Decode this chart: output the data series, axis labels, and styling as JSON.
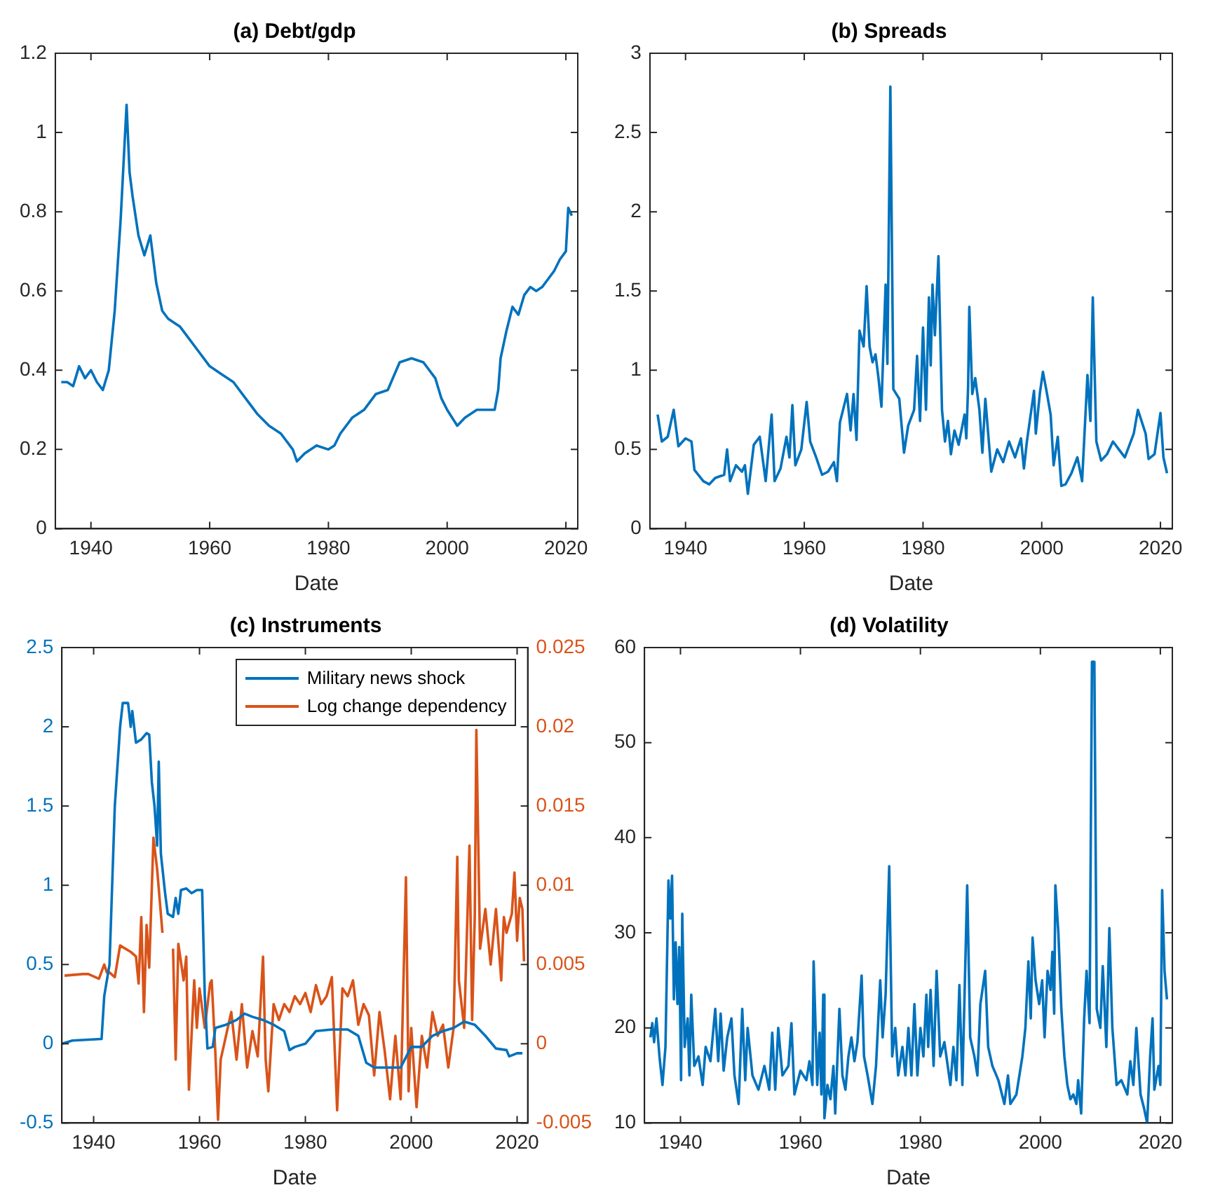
{
  "chart_data": [
    {
      "type": "line",
      "title": "(a) Debt/gdp",
      "xlabel": "Date",
      "xlim": [
        1934,
        2022
      ],
      "xticks": [
        1940,
        1960,
        1980,
        2000,
        2020
      ],
      "ylim": [
        0,
        1.2
      ],
      "yticks": [
        0,
        0.2,
        0.4,
        0.6,
        0.8,
        1,
        1.2
      ],
      "grid": false,
      "legend": false,
      "marker": "none",
      "line_style": "solid",
      "series": [
        {
          "color": "#0072bd",
          "x": [
            1935,
            1936,
            1937,
            1938,
            1939,
            1940,
            1941,
            1942,
            1943,
            1944,
            1945,
            1946,
            1946.5,
            1947,
            1948,
            1949,
            1950,
            1951,
            1952,
            1953,
            1954,
            1955,
            1956,
            1958,
            1960,
            1962,
            1964,
            1966,
            1968,
            1970,
            1972,
            1974,
            1974.7,
            1976,
            1978,
            1980,
            1981,
            1982,
            1984,
            1986,
            1988,
            1990,
            1992,
            1994,
            1996,
            1998,
            1999,
            2000,
            2001.7,
            2003,
            2005,
            2007,
            2008,
            2008.6,
            2009,
            2010,
            2011,
            2012,
            2013,
            2014,
            2015,
            2016,
            2017,
            2018,
            2019,
            2020,
            2020.4,
            2021
          ],
          "values": [
            0.37,
            0.37,
            0.36,
            0.41,
            0.38,
            0.4,
            0.37,
            0.35,
            0.4,
            0.55,
            0.78,
            1.07,
            0.9,
            0.84,
            0.74,
            0.69,
            0.74,
            0.62,
            0.55,
            0.53,
            0.52,
            0.51,
            0.49,
            0.45,
            0.41,
            0.39,
            0.37,
            0.33,
            0.29,
            0.26,
            0.24,
            0.2,
            0.17,
            0.19,
            0.21,
            0.2,
            0.21,
            0.24,
            0.28,
            0.3,
            0.34,
            0.35,
            0.42,
            0.43,
            0.42,
            0.38,
            0.33,
            0.3,
            0.26,
            0.28,
            0.3,
            0.3,
            0.3,
            0.35,
            0.43,
            0.5,
            0.56,
            0.54,
            0.59,
            0.61,
            0.6,
            0.61,
            0.63,
            0.65,
            0.68,
            0.7,
            0.81,
            0.79
          ]
        }
      ]
    },
    {
      "type": "line",
      "title": "(b) Spreads",
      "xlabel": "Date",
      "xlim": [
        1934,
        2022
      ],
      "xticks": [
        1940,
        1960,
        1980,
        2000,
        2020
      ],
      "ylim": [
        0,
        3
      ],
      "yticks": [
        0,
        0.5,
        1,
        1.5,
        2,
        2.5,
        3
      ],
      "grid": false,
      "legend": false,
      "marker": "none",
      "line_style": "solid",
      "series": [
        {
          "color": "#0072bd",
          "x": [
            1935.3,
            1936,
            1937,
            1938,
            1938.8,
            1940,
            1941,
            1941.5,
            1943,
            1944,
            1945,
            1946.5,
            1947,
            1947.5,
            1948.5,
            1949.5,
            1950,
            1950.5,
            1951.5,
            1952.5,
            1953.5,
            1954.5,
            1955,
            1956,
            1957,
            1957.5,
            1958,
            1958.5,
            1959.5,
            1960.4,
            1961,
            1962,
            1963,
            1964,
            1965,
            1965.5,
            1966,
            1967.2,
            1967.8,
            1968.3,
            1968.8,
            1969.3,
            1970,
            1970.5,
            1971,
            1971.5,
            1972,
            1972.5,
            1973,
            1973.7,
            1974,
            1974.5,
            1975,
            1976,
            1976.8,
            1977.5,
            1978.5,
            1979,
            1979.5,
            1980,
            1980.5,
            1981,
            1981.3,
            1981.6,
            1982,
            1982.6,
            1983.2,
            1983.7,
            1984.2,
            1984.7,
            1985.3,
            1986,
            1987,
            1987.3,
            1987.6,
            1987.8,
            1988.3,
            1988.8,
            1989.5,
            1990,
            1990.5,
            1991.5,
            1992.5,
            1993.5,
            1994.5,
            1995.5,
            1996.5,
            1997,
            1997.5,
            1998.7,
            1999,
            1999.7,
            2000.2,
            2000.8,
            2001.5,
            2002,
            2002.7,
            2003.3,
            2004,
            2005,
            2006,
            2006.8,
            2007.7,
            2008.2,
            2008.6,
            2009.2,
            2010,
            2011,
            2012,
            2013,
            2014,
            2015.5,
            2016.2,
            2017.5,
            2018,
            2019,
            2020,
            2020.5,
            2021.1
          ],
          "values": [
            0.72,
            0.55,
            0.58,
            0.75,
            0.52,
            0.57,
            0.55,
            0.37,
            0.3,
            0.28,
            0.32,
            0.34,
            0.5,
            0.3,
            0.4,
            0.36,
            0.4,
            0.22,
            0.53,
            0.58,
            0.3,
            0.72,
            0.3,
            0.38,
            0.58,
            0.45,
            0.78,
            0.4,
            0.5,
            0.8,
            0.55,
            0.45,
            0.34,
            0.36,
            0.42,
            0.3,
            0.67,
            0.85,
            0.62,
            0.85,
            0.56,
            1.25,
            1.15,
            1.53,
            1.15,
            1.05,
            1.1,
            0.95,
            0.77,
            1.54,
            1.04,
            2.79,
            0.88,
            0.82,
            0.48,
            0.65,
            0.75,
            1.09,
            0.68,
            1.27,
            0.75,
            1.46,
            1.03,
            1.54,
            1.22,
            1.72,
            0.75,
            0.55,
            0.68,
            0.47,
            0.62,
            0.53,
            0.72,
            0.57,
            0.9,
            1.4,
            0.85,
            0.95,
            0.75,
            0.48,
            0.82,
            0.36,
            0.5,
            0.42,
            0.55,
            0.45,
            0.57,
            0.38,
            0.55,
            0.87,
            0.6,
            0.86,
            0.99,
            0.87,
            0.72,
            0.4,
            0.58,
            0.27,
            0.28,
            0.35,
            0.45,
            0.3,
            0.97,
            0.68,
            1.46,
            0.55,
            0.43,
            0.47,
            0.55,
            0.5,
            0.45,
            0.6,
            0.75,
            0.6,
            0.44,
            0.47,
            0.73,
            0.45,
            0.35
          ]
        }
      ]
    },
    {
      "type": "line",
      "title": "(c) Instruments",
      "xlabel": "Date",
      "xlim": [
        1934,
        2022
      ],
      "xticks": [
        1940,
        1960,
        1980,
        2000,
        2020
      ],
      "ylim": [
        -0.5,
        2.5
      ],
      "yticks": [
        -0.5,
        0,
        0.5,
        1,
        1.5,
        2,
        2.5
      ],
      "y2lim": [
        -0.005,
        0.025
      ],
      "y2ticks": [
        -0.005,
        0,
        0.005,
        0.01,
        0.015,
        0.02,
        0.025
      ],
      "grid": false,
      "legend": "top right",
      "marker": "none",
      "line_style": "solid",
      "series": [
        {
          "name": "Military news shock",
          "color": "#0072bd",
          "x": [
            1934,
            1936,
            1941.5,
            1942,
            1943,
            1943.5,
            1944,
            1945,
            1945.5,
            1946.5,
            1947,
            1947.3,
            1948,
            1949,
            1950,
            1950.5,
            1951,
            1951.5,
            1952,
            1952.3,
            1952.7,
            1953.5,
            1954,
            1955,
            1955.5,
            1956,
            1956.5,
            1957.5,
            1958.5,
            1959.5,
            1960.5,
            1961,
            1961.5,
            1962.5,
            1963,
            1965,
            1967,
            1968.5,
            1970,
            1972,
            1974,
            1976,
            1977,
            1978,
            1980,
            1982,
            1985,
            1988,
            1990,
            1991.5,
            1993,
            1995,
            1998,
            2000,
            2002,
            2004,
            2006,
            2008,
            2010,
            2012,
            2014,
            2016,
            2018,
            2018.5,
            2020,
            2021
          ],
          "values": [
            0.0,
            0.02,
            0.03,
            0.3,
            0.5,
            1.0,
            1.5,
            2.0,
            2.15,
            2.15,
            2.0,
            2.1,
            1.9,
            1.92,
            1.96,
            1.95,
            1.65,
            1.5,
            1.25,
            1.78,
            1.2,
            0.95,
            0.82,
            0.8,
            0.92,
            0.82,
            0.97,
            0.98,
            0.95,
            0.97,
            0.97,
            0.3,
            -0.03,
            -0.02,
            0.1,
            0.12,
            0.15,
            0.19,
            0.17,
            0.15,
            0.12,
            0.08,
            -0.04,
            -0.02,
            0.0,
            0.08,
            0.09,
            0.09,
            0.05,
            -0.12,
            -0.15,
            -0.15,
            -0.15,
            -0.02,
            -0.02,
            0.05,
            0.08,
            0.1,
            0.14,
            0.12,
            0.05,
            -0.03,
            -0.04,
            -0.08,
            -0.06,
            -0.06
          ]
        },
        {
          "name": "Log change dependency",
          "color": "#d95319",
          "axis": "y2",
          "x": [
            1934.5,
            1938,
            1939,
            1941,
            1942,
            1942.5,
            1943,
            1944,
            1945,
            1947,
            1948,
            1948.5,
            1949,
            1949.5,
            1950,
            1950.5,
            1951.3,
            1952,
            1952.5,
            1953,
            1954,
            1955,
            1955.5,
            1956,
            1957,
            1957.5,
            1958,
            1959,
            1959.5,
            1960,
            1961,
            1962,
            1962.3,
            1963,
            1963.5,
            1964,
            1965,
            1966,
            1967,
            1968,
            1969,
            1970,
            1971,
            1972,
            1972.5,
            1973,
            1974,
            1975,
            1976,
            1977,
            1978,
            1979,
            1980,
            1981,
            1982,
            1983,
            1984,
            1985,
            1986,
            1987,
            1988,
            1989,
            1990,
            1991,
            1992,
            1993,
            1994,
            1995,
            1996,
            1997,
            1998,
            1999,
            1999.5,
            2000,
            2001,
            2002,
            2003,
            2004,
            2005,
            2006,
            2007,
            2008,
            2008.7,
            2009,
            2010,
            2011,
            2011.5,
            2012,
            2012.3,
            2013,
            2014,
            2015,
            2016,
            2017,
            2017.5,
            2018,
            2019,
            2019.5,
            2020,
            2020.5,
            2021,
            2021.3
          ],
          "values": [
            0.0043,
            0.0044,
            0.0044,
            0.0041,
            0.005,
            0.0045,
            0.0045,
            0.0042,
            0.0062,
            0.0058,
            0.0055,
            0.0038,
            0.008,
            0.002,
            0.0075,
            0.0048,
            0.013,
            0.011,
            0.009,
            0.007,
            null,
            0.006,
            -0.001,
            0.0063,
            0.004,
            0.0055,
            -0.0029,
            0.004,
            0.001,
            0.0035,
            0.001,
            0.0038,
            0.004,
            -0.0006,
            -0.0048,
            -0.001,
            0.0005,
            0.002,
            -0.001,
            0.0025,
            -0.0015,
            0.0008,
            -0.0008,
            0.0055,
            -0.001,
            -0.003,
            0.0025,
            0.0015,
            0.0025,
            0.002,
            0.003,
            0.0025,
            0.0032,
            0.002,
            0.0037,
            0.0025,
            0.003,
            0.0042,
            -0.0042,
            0.0035,
            0.003,
            0.004,
            0.0012,
            0.0025,
            0.0018,
            -0.002,
            0.002,
            -0.0005,
            -0.0035,
            0.0005,
            -0.0035,
            0.0105,
            -0.003,
            0.001,
            -0.004,
            0.0005,
            -0.0015,
            0.002,
            0.0005,
            0.0012,
            -0.0015,
            0.001,
            0.0118,
            0.004,
            0.001,
            0.0125,
            0.0015,
            0.008,
            0.0198,
            0.006,
            0.0085,
            0.005,
            0.0085,
            0.004,
            0.008,
            0.007,
            0.0082,
            0.0108,
            0.0065,
            0.0092,
            0.0085,
            0.0052
          ]
        }
      ]
    },
    {
      "type": "line",
      "title": "(d) Volatility",
      "xlabel": "Date",
      "xlim": [
        1934,
        2022
      ],
      "xticks": [
        1940,
        1960,
        1980,
        2000,
        2020
      ],
      "ylim": [
        10,
        60
      ],
      "yticks": [
        10,
        20,
        30,
        40,
        50,
        60
      ],
      "grid": false,
      "legend": false,
      "marker": "none",
      "line_style": "solid",
      "series": [
        {
          "color": "#0072bd",
          "x": [
            1935,
            1935.3,
            1935.6,
            1936,
            1936.5,
            1937,
            1937.5,
            1938,
            1938.3,
            1938.6,
            1938.9,
            1939.2,
            1939.5,
            1939.8,
            1940.1,
            1940.3,
            1940.7,
            1941.2,
            1941.5,
            1941.8,
            1942.3,
            1943,
            1943.7,
            1944.2,
            1945,
            1945.8,
            1946.3,
            1946.7,
            1947.2,
            1947.8,
            1948.5,
            1949,
            1949.7,
            1950.3,
            1950.8,
            1951.2,
            1952,
            1953,
            1954,
            1954.8,
            1955.3,
            1955.8,
            1956.3,
            1957,
            1958,
            1958.5,
            1959,
            1960,
            1961,
            1961.5,
            1962,
            1962.2,
            1962.8,
            1963.2,
            1963.5,
            1963.8,
            1964,
            1964.5,
            1965,
            1965.5,
            1965.8,
            1966.5,
            1967,
            1967.5,
            1968,
            1968.5,
            1969,
            1969.5,
            1970.2,
            1970.6,
            1971.2,
            1972,
            1972.6,
            1973.3,
            1973.7,
            1974.2,
            1974.8,
            1975.3,
            1975.8,
            1976.3,
            1977,
            1977.5,
            1978,
            1978.5,
            1979,
            1979.5,
            1980,
            1980.5,
            1981,
            1981.3,
            1981.7,
            1982.2,
            1982.7,
            1983.3,
            1984,
            1985,
            1985.5,
            1986,
            1986.5,
            1987,
            1987.8,
            1988.3,
            1989,
            1989.5,
            1990,
            1990.8,
            1991.3,
            1992,
            1993,
            1994,
            1994.6,
            1995,
            1996,
            1997,
            1997.5,
            1998,
            1998.4,
            1998.7,
            1999.2,
            1999.8,
            2000.3,
            2000.7,
            2001.2,
            2001.7,
            2002,
            2002.3,
            2002.5,
            2003,
            2003.5,
            2004,
            2004.5,
            2005,
            2005.5,
            2006,
            2006.3,
            2006.8,
            2007.3,
            2007.7,
            2008.2,
            2008.6,
            2009,
            2009.4,
            2010,
            2010.4,
            2011,
            2011.5,
            2012,
            2012.7,
            2013.5,
            2014.5,
            2015,
            2015.5,
            2016,
            2016.7,
            2017.3,
            2017.8,
            2018.3,
            2018.7,
            2019,
            2019.7,
            2020,
            2020.3,
            2020.7,
            2021.1
          ],
          "values": [
            19,
            20.5,
            18.5,
            21,
            17,
            14,
            18,
            35.5,
            31.5,
            36,
            23,
            29,
            22.5,
            28.5,
            14.5,
            32,
            18,
            21,
            15,
            23.5,
            16,
            17,
            14,
            18,
            16.5,
            22,
            16.5,
            21.5,
            15.5,
            19,
            21,
            15,
            12,
            22,
            14.5,
            20,
            15,
            13.5,
            16,
            13.5,
            19.5,
            13.5,
            20,
            15,
            16,
            20.5,
            13,
            15.5,
            14.5,
            16.5,
            14,
            27,
            14,
            19.5,
            13,
            23.5,
            10.5,
            14,
            12.5,
            16,
            11,
            22,
            15,
            13.5,
            17,
            19,
            16.5,
            18.5,
            25.5,
            17,
            15,
            12,
            16,
            25,
            19,
            23.5,
            37,
            17,
            20,
            15,
            18,
            15,
            20,
            15,
            22.5,
            15,
            20,
            17,
            23.5,
            18,
            24,
            16,
            26,
            17,
            18.5,
            14,
            18,
            14.5,
            24.5,
            14,
            35,
            19,
            17,
            15,
            22.5,
            26,
            18,
            16,
            14.5,
            12,
            15,
            12,
            13,
            17,
            20,
            27,
            21,
            29.5,
            25,
            22.5,
            25,
            19,
            26,
            24,
            28,
            21.5,
            35,
            30,
            22,
            17,
            14,
            12.5,
            13,
            12,
            14.5,
            11,
            21,
            26,
            20.5,
            58.5,
            58.5,
            22,
            20,
            26.5,
            18,
            30.5,
            20,
            14,
            14.5,
            13,
            16.5,
            14,
            20,
            13,
            11.5,
            10,
            17,
            21,
            13.5,
            16,
            14,
            34.5,
            26,
            23
          ]
        }
      ]
    }
  ]
}
